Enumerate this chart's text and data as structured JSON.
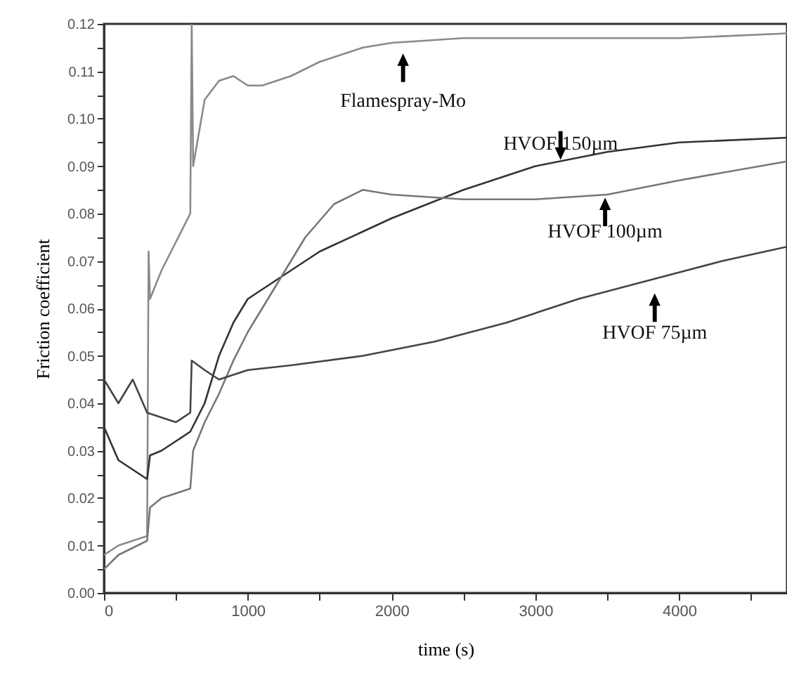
{
  "chart_data": {
    "type": "line",
    "xlabel": "time (s)",
    "ylabel": "Friction coefficient",
    "xlim": [
      0,
      4750
    ],
    "ylim": [
      0,
      0.12
    ],
    "xticks": [
      0,
      {
        "value": 500,
        "label": null
      },
      1000,
      {
        "value": 1500,
        "label": null
      },
      2000,
      {
        "value": 2500,
        "label": null
      },
      3000,
      {
        "value": 3500,
        "label": null
      },
      4000,
      {
        "value": 4500,
        "label": null
      }
    ],
    "yticks": [
      {
        "value": 0,
        "label": "0.00"
      },
      {
        "value": 0.005,
        "label": null
      },
      {
        "value": 0.01,
        "label": "0.01"
      },
      {
        "value": 0.015,
        "label": null
      },
      {
        "value": 0.02,
        "label": "0.02"
      },
      {
        "value": 0.025,
        "label": null
      },
      {
        "value": 0.03,
        "label": "0.03"
      },
      {
        "value": 0.035,
        "label": null
      },
      {
        "value": 0.04,
        "label": "0.04"
      },
      {
        "value": 0.045,
        "label": null
      },
      {
        "value": 0.05,
        "label": "0.05"
      },
      {
        "value": 0.055,
        "label": null
      },
      {
        "value": 0.06,
        "label": "0.06"
      },
      {
        "value": 0.065,
        "label": null
      },
      {
        "value": 0.07,
        "label": "0.07"
      },
      {
        "value": 0.075,
        "label": null
      },
      {
        "value": 0.08,
        "label": "0.08"
      },
      {
        "value": 0.085,
        "label": null
      },
      {
        "value": 0.09,
        "label": "0.09"
      },
      {
        "value": 0.095,
        "label": null
      },
      {
        "value": 0.1,
        "label": "0.10"
      },
      {
        "value": 0.105,
        "label": null
      },
      {
        "value": 0.11,
        "label": "0.11"
      },
      {
        "value": 0.115,
        "label": null
      },
      {
        "value": 0.12,
        "label": "0.12"
      }
    ],
    "grid": false,
    "marker": "none",
    "line_style": "solid",
    "series": [
      {
        "color": "#8a8a8a",
        "x": [
          0,
          100,
          200,
          300,
          310,
          320,
          400,
          500,
          600,
          610,
          620,
          700,
          800,
          900,
          1000,
          1100,
          1300,
          1500,
          1800,
          2000,
          2500,
          3000,
          3500,
          4000,
          4750
        ],
        "values": [
          0.008,
          0.01,
          0.011,
          0.012,
          0.072,
          0.062,
          0.068,
          0.074,
          0.08,
          0.12,
          0.09,
          0.104,
          0.108,
          0.109,
          0.107,
          0.107,
          0.109,
          0.112,
          0.115,
          0.116,
          0.117,
          0.117,
          0.117,
          0.117,
          0.118
        ]
      },
      {
        "color": "#333333",
        "x": [
          0,
          100,
          200,
          300,
          320,
          400,
          500,
          600,
          700,
          800,
          900,
          1000,
          1200,
          1500,
          2000,
          2500,
          3000,
          3500,
          4000,
          4750
        ],
        "values": [
          0.035,
          0.028,
          0.026,
          0.024,
          0.029,
          0.03,
          0.032,
          0.034,
          0.04,
          0.05,
          0.057,
          0.062,
          0.066,
          0.072,
          0.079,
          0.085,
          0.09,
          0.093,
          0.095,
          0.096
        ]
      },
      {
        "color": "#777777",
        "x": [
          0,
          100,
          300,
          320,
          400,
          600,
          620,
          700,
          800,
          900,
          1000,
          1200,
          1400,
          1600,
          1800,
          2000,
          2500,
          3000,
          3500,
          4000,
          4750
        ],
        "values": [
          0.005,
          0.008,
          0.011,
          0.018,
          0.02,
          0.022,
          0.03,
          0.036,
          0.042,
          0.049,
          0.055,
          0.065,
          0.075,
          0.082,
          0.085,
          0.084,
          0.083,
          0.083,
          0.084,
          0.087,
          0.091
        ]
      },
      {
        "color": "#444444",
        "x": [
          0,
          100,
          200,
          300,
          400,
          500,
          600,
          610,
          700,
          800,
          1000,
          1300,
          1800,
          2300,
          2800,
          3300,
          3800,
          4300,
          4750
        ],
        "values": [
          0.045,
          0.04,
          0.045,
          0.038,
          0.037,
          0.036,
          0.038,
          0.049,
          0.047,
          0.045,
          0.047,
          0.048,
          0.05,
          0.053,
          0.057,
          0.062,
          0.066,
          0.07,
          0.073
        ]
      }
    ],
    "annotations": [
      {
        "text": "Flamespray-Mo",
        "x": 2080,
        "y": 0.1155
      },
      {
        "text": "HVOF 150µm",
        "x": 3175,
        "y": 0.0905
      },
      {
        "text": "HVOF 100µm",
        "x": 3485,
        "y": 0.0845
      },
      {
        "text": "HVOF 75µm",
        "x": 3830,
        "y": 0.0655
      }
    ]
  }
}
